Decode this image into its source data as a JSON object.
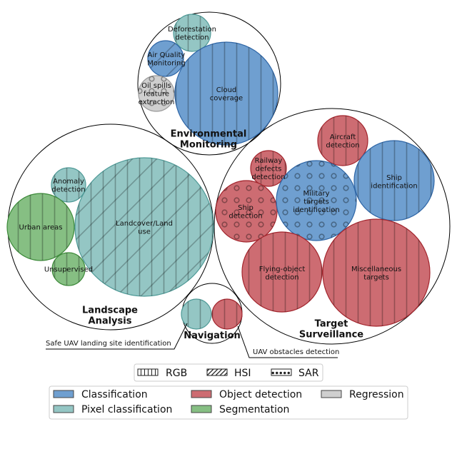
{
  "colors": {
    "classification": "#6f9fd0",
    "pixel_classification": "#94c6c4",
    "object_detection": "#cd6c72",
    "segmentation": "#86bf83",
    "regression": "#cfcfcf"
  },
  "groups": {
    "environmental": "Environmental\nMonitoring",
    "landscape": "Landscape\nAnalysis",
    "target": "Target\nSurveillance",
    "navigation": "Navigation"
  },
  "nodes": {
    "deforestation": "Deforestation\ndetection",
    "air_quality": "Air Quality\nMonitoring",
    "oil_spills": "Oil spills\nfeature\nextraction",
    "cloud_coverage": "Cloud\ncoverage",
    "anomaly": "Anomaly\ndetection",
    "urban": "Urban areas",
    "unsupervised": "Unsupervised",
    "landcover": "Landcover/Land\nuse",
    "railway": "Railway\ndefects\ndetection",
    "aircraft": "Aircraft\ndetection",
    "ship_id": "Ship\nidentification",
    "ship_det": "Ship\ndetection",
    "military": "Military\ntargets\nidentification",
    "flying": "Flying-object\ndetection",
    "misc": "Miscellaneous\ntargets"
  },
  "notes": {
    "safe_landing": "Safe UAV landing site identification",
    "obstacles": "UAV obstacles detection"
  },
  "legend_sensor": {
    "rgb": "RGB",
    "hsi": "HSI",
    "sar": "SAR"
  },
  "legend_task": {
    "classification": "Classification",
    "object_detection": "Object detection",
    "regression": "Regression",
    "pixel_classification": "Pixel classification",
    "segmentation": "Segmentation"
  }
}
